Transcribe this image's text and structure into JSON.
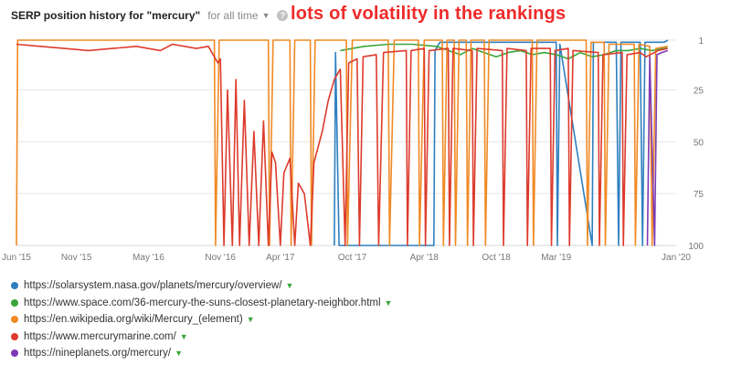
{
  "header": {
    "title": "SERP position history for \"mercury\"",
    "range_label": "for all time",
    "help_glyph": "?"
  },
  "annotation": "lots of volatility in the rankings",
  "legend": [
    {
      "url": "https://solarsystem.nasa.gov/planets/mercury/overview/",
      "color": "#2f7fbf"
    },
    {
      "url": "https://www.space.com/36-mercury-the-suns-closest-planetary-neighbor.html",
      "color": "#3aa63a"
    },
    {
      "url": "https://en.wikipedia.org/wiki/Mercury_(element)",
      "color": "#f08a25"
    },
    {
      "url": "https://www.mercurymarine.com/",
      "color": "#dd3b2c"
    },
    {
      "url": "https://nineplanets.org/mercury/",
      "color": "#7d3ab5"
    }
  ],
  "chart_data": {
    "type": "line",
    "title": "SERP position history for \"mercury\"",
    "x_ticks": [
      "Jun '15",
      "Nov '15",
      "May '16",
      "Nov '16",
      "Apr '17",
      "Oct '17",
      "Apr '18",
      "Oct '18",
      "Mar '19",
      "Jan '20"
    ],
    "y_ticks": [
      "1",
      "25",
      "50",
      "75",
      "100"
    ],
    "x_range": [
      0,
      55
    ],
    "y_range": [
      1,
      100
    ],
    "y_inverted": true,
    "x_unit": "months since Jun 2015",
    "series": [
      {
        "name": "https://solarsystem.nasa.gov/planets/mercury/overview/",
        "color": "#2f7fbf",
        "points": [
          [
            26.5,
            100
          ],
          [
            26.6,
            7
          ],
          [
            26.9,
            100
          ],
          [
            34.8,
            100
          ],
          [
            34.9,
            6
          ],
          [
            35.3,
            2
          ],
          [
            45.0,
            2
          ],
          [
            45.1,
            100
          ],
          [
            45.3,
            3
          ],
          [
            48.0,
            100
          ],
          [
            48.1,
            2
          ],
          [
            50.0,
            2
          ],
          [
            50.2,
            100
          ],
          [
            50.4,
            2
          ],
          [
            52.0,
            2
          ],
          [
            52.2,
            100
          ],
          [
            52.4,
            2
          ],
          [
            54.0,
            2
          ],
          [
            54.3,
            1
          ]
        ]
      },
      {
        "name": "https://www.space.com/36-mercury-the-suns-closest-planetary-neighbor.html",
        "color": "#3aa63a",
        "points": [
          [
            27.0,
            6
          ],
          [
            28.0,
            5
          ],
          [
            29.0,
            4
          ],
          [
            31.0,
            3
          ],
          [
            33.0,
            3
          ],
          [
            35.0,
            4
          ],
          [
            37.0,
            8
          ],
          [
            38.0,
            5
          ],
          [
            40.0,
            9
          ],
          [
            41.0,
            7
          ],
          [
            42.0,
            6
          ],
          [
            43.0,
            8
          ],
          [
            44.0,
            7
          ],
          [
            45.0,
            8
          ],
          [
            46.0,
            10
          ],
          [
            47.0,
            7
          ],
          [
            48.0,
            9
          ],
          [
            49.0,
            8
          ],
          [
            50.0,
            6
          ],
          [
            51.0,
            6
          ],
          [
            52.0,
            5
          ],
          [
            53.0,
            6
          ],
          [
            54.0,
            5
          ],
          [
            54.3,
            4
          ]
        ]
      },
      {
        "name": "https://en.wikipedia.org/wiki/Mercury_(element)",
        "color": "#f08a25",
        "points": [
          [
            0.0,
            100
          ],
          [
            0.1,
            1
          ],
          [
            8.0,
            1
          ],
          [
            16.5,
            1
          ],
          [
            16.6,
            100
          ],
          [
            16.9,
            1
          ],
          [
            21.0,
            1
          ],
          [
            21.1,
            100
          ],
          [
            21.4,
            1
          ],
          [
            22.8,
            1
          ],
          [
            22.9,
            100
          ],
          [
            23.2,
            1
          ],
          [
            24.5,
            1
          ],
          [
            24.6,
            100
          ],
          [
            24.9,
            1
          ],
          [
            27.5,
            1
          ],
          [
            27.6,
            100
          ],
          [
            28.0,
            1
          ],
          [
            31.0,
            1
          ],
          [
            31.1,
            100
          ],
          [
            31.5,
            1
          ],
          [
            33.5,
            1
          ],
          [
            33.6,
            100
          ],
          [
            34.0,
            1
          ],
          [
            35.5,
            1
          ],
          [
            35.6,
            100
          ],
          [
            35.9,
            1
          ],
          [
            36.5,
            1
          ],
          [
            36.6,
            100
          ],
          [
            36.9,
            1
          ],
          [
            37.5,
            1
          ],
          [
            37.6,
            100
          ],
          [
            37.9,
            1
          ],
          [
            39.0,
            1
          ],
          [
            39.1,
            100
          ],
          [
            39.4,
            1
          ],
          [
            43.0,
            1
          ],
          [
            43.1,
            100
          ],
          [
            43.4,
            1
          ],
          [
            47.5,
            1
          ],
          [
            47.6,
            100
          ],
          [
            47.9,
            2
          ],
          [
            49.0,
            2
          ],
          [
            49.1,
            100
          ],
          [
            49.4,
            3
          ],
          [
            51.5,
            3
          ],
          [
            51.6,
            100
          ],
          [
            51.9,
            3
          ],
          [
            52.8,
            4
          ],
          [
            53.0,
            100
          ],
          [
            53.3,
            5
          ],
          [
            54.3,
            4
          ]
        ]
      },
      {
        "name": "https://www.mercurymarine.com/",
        "color": "#dd3b2c",
        "points": [
          [
            0.0,
            3
          ],
          [
            2.0,
            4
          ],
          [
            4.0,
            5
          ],
          [
            6.0,
            6
          ],
          [
            8.0,
            5
          ],
          [
            10.0,
            4
          ],
          [
            12.0,
            6
          ],
          [
            13.0,
            3
          ],
          [
            15.0,
            5
          ],
          [
            16.0,
            4
          ],
          [
            16.8,
            12
          ],
          [
            17.0,
            10
          ],
          [
            17.3,
            100
          ],
          [
            17.6,
            25
          ],
          [
            18.0,
            100
          ],
          [
            18.3,
            20
          ],
          [
            18.6,
            100
          ],
          [
            19.0,
            30
          ],
          [
            19.4,
            100
          ],
          [
            19.8,
            45
          ],
          [
            20.2,
            100
          ],
          [
            20.6,
            40
          ],
          [
            21.0,
            100
          ],
          [
            21.3,
            55
          ],
          [
            21.6,
            60
          ],
          [
            22.0,
            100
          ],
          [
            22.3,
            65
          ],
          [
            22.8,
            58
          ],
          [
            23.2,
            100
          ],
          [
            23.5,
            70
          ],
          [
            24.0,
            75
          ],
          [
            24.5,
            100
          ],
          [
            24.8,
            60
          ],
          [
            25.5,
            45
          ],
          [
            26.0,
            30
          ],
          [
            26.5,
            20
          ],
          [
            27.0,
            15
          ],
          [
            27.4,
            100
          ],
          [
            27.7,
            12
          ],
          [
            28.4,
            10
          ],
          [
            28.6,
            100
          ],
          [
            28.9,
            9
          ],
          [
            30.0,
            8
          ],
          [
            30.2,
            100
          ],
          [
            30.6,
            7
          ],
          [
            32.5,
            6
          ],
          [
            32.6,
            100
          ],
          [
            32.9,
            6
          ],
          [
            34.0,
            5
          ],
          [
            34.1,
            100
          ],
          [
            34.4,
            6
          ],
          [
            36.0,
            5
          ],
          [
            36.1,
            100
          ],
          [
            36.4,
            5
          ],
          [
            38.0,
            6
          ],
          [
            38.1,
            100
          ],
          [
            38.4,
            5
          ],
          [
            40.5,
            6
          ],
          [
            40.6,
            100
          ],
          [
            40.9,
            5
          ],
          [
            42.5,
            6
          ],
          [
            42.6,
            100
          ],
          [
            42.9,
            5
          ],
          [
            44.5,
            5
          ],
          [
            44.6,
            100
          ],
          [
            44.9,
            6
          ],
          [
            46.0,
            5
          ],
          [
            46.1,
            100
          ],
          [
            46.4,
            6
          ],
          [
            48.5,
            7
          ],
          [
            48.6,
            100
          ],
          [
            48.9,
            8
          ],
          [
            50.5,
            7
          ],
          [
            50.6,
            100
          ],
          [
            50.9,
            8
          ],
          [
            52.0,
            7
          ],
          [
            52.5,
            9
          ],
          [
            53.5,
            6
          ],
          [
            54.3,
            5
          ]
        ]
      },
      {
        "name": "https://nineplanets.org/mercury/",
        "color": "#7d3ab5",
        "points": [
          [
            52.6,
            100
          ],
          [
            52.8,
            9
          ],
          [
            53.2,
            100
          ],
          [
            53.4,
            8
          ],
          [
            53.8,
            7
          ],
          [
            54.3,
            6
          ]
        ]
      }
    ]
  }
}
